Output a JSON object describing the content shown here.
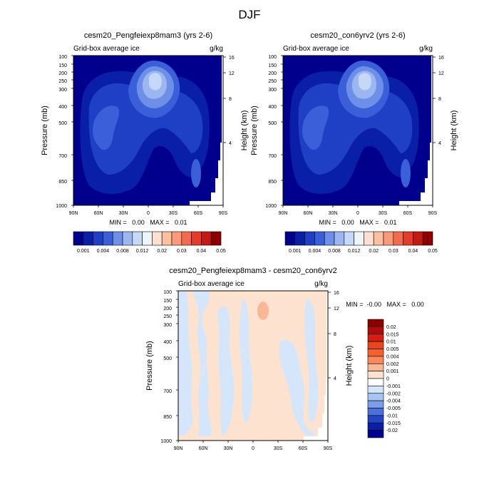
{
  "figure": {
    "title": "DJF"
  },
  "chart_data": [
    {
      "type": "heatmap",
      "title": "cesm20_Pengfeiexp8mam3 (yrs 2-6)",
      "left_label": "Grid-box average ice",
      "units": "g/kg",
      "ylabel": "Pressure (mb)",
      "ylabel_right": "Height (km)",
      "x_ticks": [
        "90N",
        "60N",
        "30N",
        "0",
        "30S",
        "60S",
        "90S"
      ],
      "y_ticks": [
        "100",
        "150",
        "200",
        "250",
        "300",
        "400",
        "500",
        "700",
        "850",
        "1000"
      ],
      "y_ticks_right": [
        "16",
        "12",
        "8",
        "4"
      ],
      "min_max_text": "MIN =   0.00   MAX =   0.01",
      "colorbar_labels": [
        "0.001",
        "0.004",
        "0.008",
        "0.012",
        "0.02",
        "0.03",
        "0.04",
        "0.05"
      ],
      "colorbar_colors": [
        "#00008c",
        "#0a1fa8",
        "#1f3fc4",
        "#3a5fd8",
        "#6e8fe8",
        "#9bb6f0",
        "#c5d8f8",
        "#eef3fc",
        "#fde0cf",
        "#fcbfa0",
        "#fa9a78",
        "#f46a4c",
        "#e33c28",
        "#c41a14",
        "#8c0000"
      ],
      "field": {
        "lat_deg": [
          90,
          0,
          -90
        ],
        "pressure_mb": [
          100,
          1000
        ],
        "max_gkg": 0.01,
        "features": [
          "upper-tropospheric maximum near 10S at 200-250 mb",
          "broad mid-latitude plumes in both hemispheres",
          "small minimum-contour blob near 60S at 700 mb"
        ]
      }
    },
    {
      "type": "heatmap",
      "title": "cesm20_con6yrv2 (yrs 2-6)",
      "left_label": "Grid-box average ice",
      "units": "g/kg",
      "ylabel": "Pressure (mb)",
      "ylabel_right": "Height (km)",
      "x_ticks": [
        "90N",
        "60N",
        "30N",
        "0",
        "30S",
        "60S",
        "90S"
      ],
      "y_ticks": [
        "100",
        "150",
        "200",
        "250",
        "300",
        "400",
        "500",
        "700",
        "850",
        "1000"
      ],
      "y_ticks_right": [
        "16",
        "12",
        "8",
        "4"
      ],
      "min_max_text": "MIN =   0.00   MAX =   0.01",
      "colorbar_labels": [
        "0.001",
        "0.004",
        "0.008",
        "0.012",
        "0.02",
        "0.03",
        "0.04",
        "0.05"
      ],
      "colorbar_colors": [
        "#00008c",
        "#0a1fa8",
        "#1f3fc4",
        "#3a5fd8",
        "#6e8fe8",
        "#9bb6f0",
        "#c5d8f8",
        "#eef3fc",
        "#fde0cf",
        "#fcbfa0",
        "#fa9a78",
        "#f46a4c",
        "#e33c28",
        "#c41a14",
        "#8c0000"
      ]
    },
    {
      "type": "heatmap",
      "title": "cesm20_Pengfeiexp8mam3 - cesm20_con6yrv2",
      "left_label": "Grid-box average ice",
      "units": "g/kg",
      "ylabel": "Pressure (mb)",
      "ylabel_right": "Height (km)",
      "x_ticks": [
        "90N",
        "60N",
        "30N",
        "0",
        "30S",
        "60S",
        "90S"
      ],
      "y_ticks": [
        "100",
        "150",
        "200",
        "250",
        "300",
        "400",
        "500",
        "700",
        "850",
        "1000"
      ],
      "y_ticks_right": [
        "16",
        "12",
        "8",
        "4"
      ],
      "min_max_text": "MIN =  -0.00   MAX =   0.00",
      "colorbar_labels": [
        "0.02",
        "0.015",
        "0.01",
        "0.005",
        "0.004",
        "0.002",
        "0.001",
        "0",
        "-0.001",
        "-0.002",
        "-0.004",
        "-0.005",
        "-0.01",
        "-0.015",
        "-0.02"
      ],
      "colorbar_colors": [
        "#8c0000",
        "#b00a0a",
        "#d41e14",
        "#e8461e",
        "#f4602e",
        "#f68a5e",
        "#f8b898",
        "#fde3cf",
        "#ffffff",
        "#d6e6fa",
        "#a9c4f2",
        "#7a9ee8",
        "#4a70dc",
        "#2444c4",
        "#0a1fa8",
        "#00008c"
      ]
    }
  ]
}
